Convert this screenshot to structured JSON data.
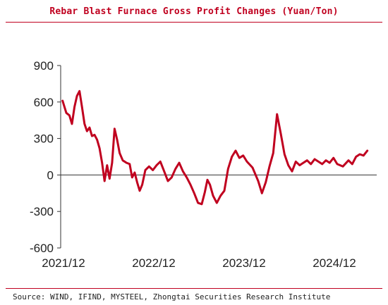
{
  "title": "Rebar Blast Furnace Gross Profit Changes (Yuan/Ton)",
  "source": "Source: WIND, IFIND, MYSTEEL, Zhongtai Securities Research Institute",
  "chart_data": {
    "type": "line",
    "title": "Rebar Blast Furnace Gross Profit Changes (Yuan/Ton)",
    "xlabel": "",
    "ylabel": "",
    "ylim": [
      -600,
      900
    ],
    "yticks": [
      900,
      600,
      300,
      0,
      -300,
      -600
    ],
    "x_tick_labels": [
      "2021/12",
      "2022/12",
      "2023/12",
      "2024/12"
    ],
    "x_range": [
      "2021-12",
      "2025-06"
    ],
    "grid": false,
    "legend": "none",
    "color": "#c0001f",
    "series": [
      {
        "values": [
          [
            "2021-12",
            610
          ],
          [
            "2021-12",
            510
          ],
          [
            "2022-01",
            490
          ],
          [
            "2022-01",
            420
          ],
          [
            "2022-01",
            560
          ],
          [
            "2022-02",
            650
          ],
          [
            "2022-02",
            690
          ],
          [
            "2022-02",
            560
          ],
          [
            "2022-03",
            420
          ],
          [
            "2022-03",
            360
          ],
          [
            "2022-03",
            390
          ],
          [
            "2022-04",
            320
          ],
          [
            "2022-04",
            330
          ],
          [
            "2022-04",
            290
          ],
          [
            "2022-05",
            220
          ],
          [
            "2022-05",
            100
          ],
          [
            "2022-05",
            -50
          ],
          [
            "2022-06",
            80
          ],
          [
            "2022-06",
            -30
          ],
          [
            "2022-06",
            100
          ],
          [
            "2022-07",
            380
          ],
          [
            "2022-07",
            290
          ],
          [
            "2022-07",
            180
          ],
          [
            "2022-08",
            120
          ],
          [
            "2022-08",
            100
          ],
          [
            "2022-09",
            90
          ],
          [
            "2022-09",
            -20
          ],
          [
            "2022-09",
            20
          ],
          [
            "2022-10",
            -60
          ],
          [
            "2022-10",
            -130
          ],
          [
            "2022-10",
            -80
          ],
          [
            "2022-11",
            40
          ],
          [
            "2022-11",
            70
          ],
          [
            "2022-12",
            40
          ],
          [
            "2022-12",
            80
          ],
          [
            "2023-01",
            110
          ],
          [
            "2023-01",
            30
          ],
          [
            "2023-02",
            -50
          ],
          [
            "2023-02",
            -20
          ],
          [
            "2023-03",
            50
          ],
          [
            "2023-03",
            100
          ],
          [
            "2023-04",
            30
          ],
          [
            "2023-04",
            -20
          ],
          [
            "2023-05",
            -80
          ],
          [
            "2023-05",
            -150
          ],
          [
            "2023-06",
            -230
          ],
          [
            "2023-06",
            -240
          ],
          [
            "2023-07",
            -140
          ],
          [
            "2023-07",
            -40
          ],
          [
            "2023-07",
            -80
          ],
          [
            "2023-08",
            -170
          ],
          [
            "2023-08",
            -230
          ],
          [
            "2023-09",
            -170
          ],
          [
            "2023-09",
            -130
          ],
          [
            "2023-10",
            50
          ],
          [
            "2023-10",
            150
          ],
          [
            "2023-11",
            200
          ],
          [
            "2023-11",
            140
          ],
          [
            "2023-12",
            160
          ],
          [
            "2023-12",
            110
          ],
          [
            "2024-01",
            60
          ],
          [
            "2024-02",
            -50
          ],
          [
            "2024-02",
            -150
          ],
          [
            "2024-03",
            -60
          ],
          [
            "2024-03",
            70
          ],
          [
            "2024-04",
            180
          ],
          [
            "2024-04",
            500
          ],
          [
            "2024-05",
            340
          ],
          [
            "2024-05",
            170
          ],
          [
            "2024-06",
            80
          ],
          [
            "2024-06",
            30
          ],
          [
            "2024-07",
            110
          ],
          [
            "2024-07",
            80
          ],
          [
            "2024-08",
            100
          ],
          [
            "2024-08",
            120
          ],
          [
            "2024-09",
            90
          ],
          [
            "2024-09",
            130
          ],
          [
            "2024-10",
            110
          ],
          [
            "2024-10",
            90
          ],
          [
            "2024-11",
            120
          ],
          [
            "2024-11",
            100
          ],
          [
            "2024-12",
            140
          ],
          [
            "2024-12",
            90
          ],
          [
            "2025-01",
            70
          ],
          [
            "2025-02",
            120
          ],
          [
            "2025-02",
            90
          ],
          [
            "2025-03",
            150
          ],
          [
            "2025-03",
            170
          ],
          [
            "2025-04",
            160
          ],
          [
            "2025-04",
            200
          ]
        ]
      }
    ]
  }
}
